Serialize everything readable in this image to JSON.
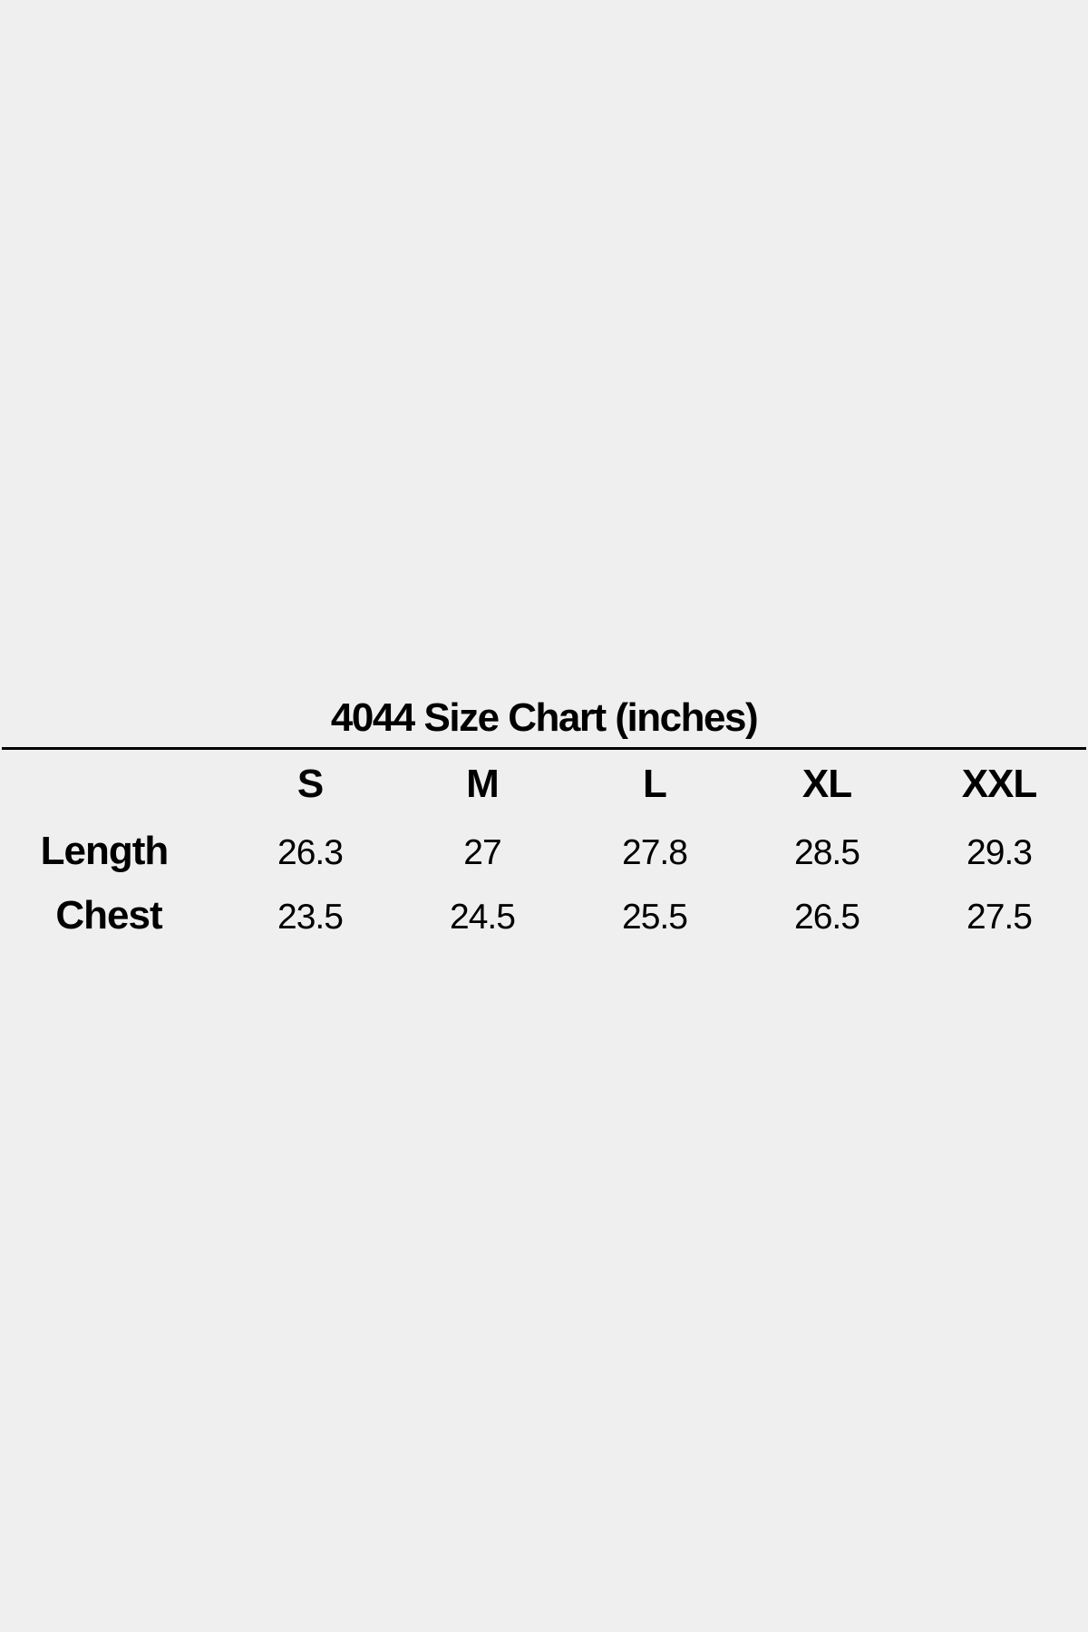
{
  "title": "4044 Size Chart (inches)",
  "sizes": [
    "S",
    "M",
    "L",
    "XL",
    "XXL"
  ],
  "rows": [
    {
      "label": "Length",
      "values": [
        "26.3",
        "27",
        "27.8",
        "28.5",
        "29.3"
      ]
    },
    {
      "label": "Chest",
      "values": [
        "23.5",
        "24.5",
        "25.5",
        "26.5",
        "27.5"
      ]
    }
  ]
}
